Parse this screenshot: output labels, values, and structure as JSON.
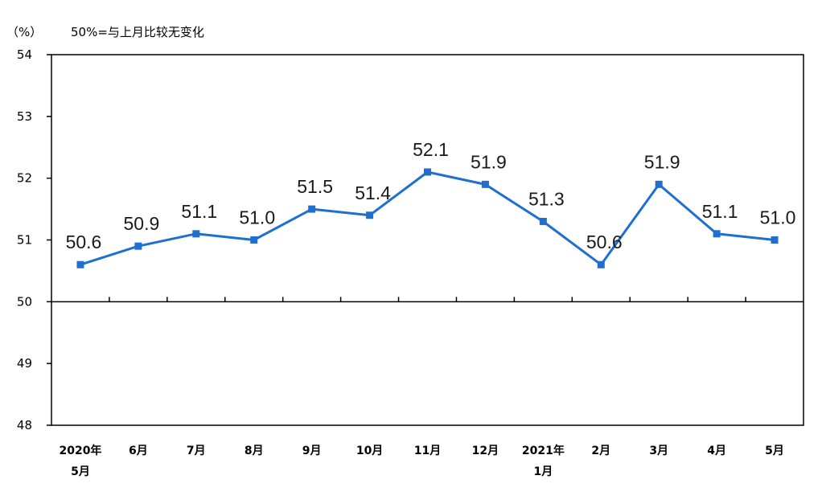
{
  "header": {
    "unit": "（%）",
    "note": "50%=与上月比较无变化"
  },
  "chart_data": {
    "type": "line",
    "title": "",
    "xlabel": "",
    "ylabel": "（%）",
    "ylim": [
      48,
      54
    ],
    "yticks": [
      "48",
      "49",
      "50",
      "51",
      "52",
      "53",
      "54"
    ],
    "reference_line": 50,
    "grid": false,
    "series_color": "#1f6fd0",
    "categories": [
      [
        "2020年",
        "5月"
      ],
      [
        "6月"
      ],
      [
        "7月"
      ],
      [
        "8月"
      ],
      [
        "9月"
      ],
      [
        "10月"
      ],
      [
        "11月"
      ],
      [
        "12月"
      ],
      [
        "2021年",
        "1月"
      ],
      [
        "2月"
      ],
      [
        "3月"
      ],
      [
        "4月"
      ],
      [
        "5月"
      ]
    ],
    "values": [
      50.6,
      50.9,
      51.1,
      51.0,
      51.5,
      51.4,
      52.1,
      51.9,
      51.3,
      50.6,
      51.9,
      51.1,
      51.0
    ],
    "value_labels": [
      "50.6",
      "50.9",
      "51.1",
      "51.0",
      "51.5",
      "51.4",
      "52.1",
      "51.9",
      "51.3",
      "50.6",
      "51.9",
      "51.1",
      "51.0"
    ]
  }
}
